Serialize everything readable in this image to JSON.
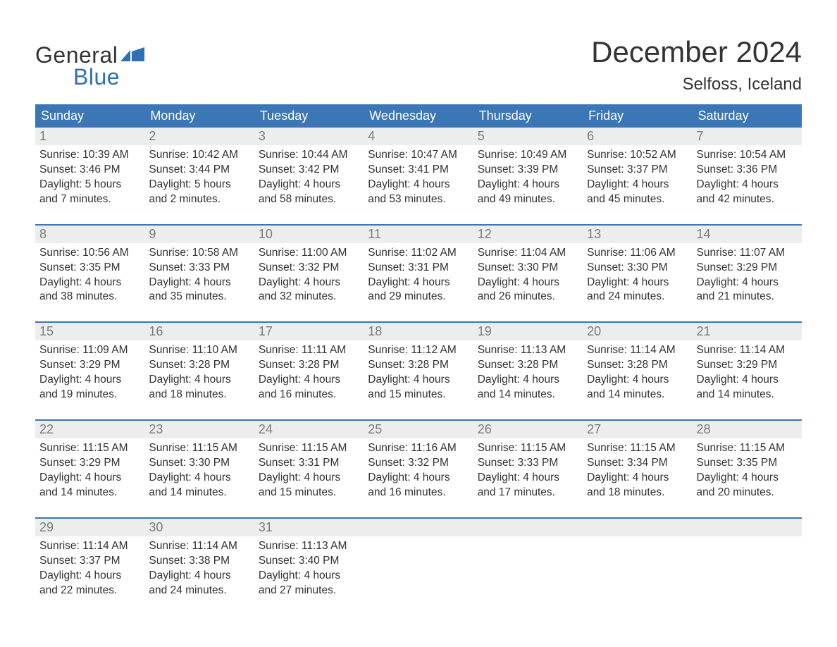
{
  "logo": {
    "text_top": "General",
    "text_bottom": "Blue",
    "flag_color": "#2f6fb3",
    "top_color": "#333333",
    "bottom_color": "#2f6fb3"
  },
  "title": "December 2024",
  "location": "Selfoss, Iceland",
  "colors": {
    "header_bg": "#3b76b6",
    "header_text": "#ffffff",
    "daynum_bg": "#eceeee",
    "daynum_text": "#7a7a7a",
    "body_text": "#333333",
    "week_divider": "#3b76b6",
    "page_bg": "#ffffff"
  },
  "fonts": {
    "title_size_pt": 32,
    "location_size_pt": 18,
    "weekday_size_pt": 14,
    "daynum_size_pt": 14,
    "body_size_pt": 12
  },
  "weekdays": [
    "Sunday",
    "Monday",
    "Tuesday",
    "Wednesday",
    "Thursday",
    "Friday",
    "Saturday"
  ],
  "weeks": [
    [
      {
        "n": "1",
        "sunrise": "Sunrise: 10:39 AM",
        "sunset": "Sunset: 3:46 PM",
        "d1": "Daylight: 5 hours",
        "d2": "and 7 minutes."
      },
      {
        "n": "2",
        "sunrise": "Sunrise: 10:42 AM",
        "sunset": "Sunset: 3:44 PM",
        "d1": "Daylight: 5 hours",
        "d2": "and 2 minutes."
      },
      {
        "n": "3",
        "sunrise": "Sunrise: 10:44 AM",
        "sunset": "Sunset: 3:42 PM",
        "d1": "Daylight: 4 hours",
        "d2": "and 58 minutes."
      },
      {
        "n": "4",
        "sunrise": "Sunrise: 10:47 AM",
        "sunset": "Sunset: 3:41 PM",
        "d1": "Daylight: 4 hours",
        "d2": "and 53 minutes."
      },
      {
        "n": "5",
        "sunrise": "Sunrise: 10:49 AM",
        "sunset": "Sunset: 3:39 PM",
        "d1": "Daylight: 4 hours",
        "d2": "and 49 minutes."
      },
      {
        "n": "6",
        "sunrise": "Sunrise: 10:52 AM",
        "sunset": "Sunset: 3:37 PM",
        "d1": "Daylight: 4 hours",
        "d2": "and 45 minutes."
      },
      {
        "n": "7",
        "sunrise": "Sunrise: 10:54 AM",
        "sunset": "Sunset: 3:36 PM",
        "d1": "Daylight: 4 hours",
        "d2": "and 42 minutes."
      }
    ],
    [
      {
        "n": "8",
        "sunrise": "Sunrise: 10:56 AM",
        "sunset": "Sunset: 3:35 PM",
        "d1": "Daylight: 4 hours",
        "d2": "and 38 minutes."
      },
      {
        "n": "9",
        "sunrise": "Sunrise: 10:58 AM",
        "sunset": "Sunset: 3:33 PM",
        "d1": "Daylight: 4 hours",
        "d2": "and 35 minutes."
      },
      {
        "n": "10",
        "sunrise": "Sunrise: 11:00 AM",
        "sunset": "Sunset: 3:32 PM",
        "d1": "Daylight: 4 hours",
        "d2": "and 32 minutes."
      },
      {
        "n": "11",
        "sunrise": "Sunrise: 11:02 AM",
        "sunset": "Sunset: 3:31 PM",
        "d1": "Daylight: 4 hours",
        "d2": "and 29 minutes."
      },
      {
        "n": "12",
        "sunrise": "Sunrise: 11:04 AM",
        "sunset": "Sunset: 3:30 PM",
        "d1": "Daylight: 4 hours",
        "d2": "and 26 minutes."
      },
      {
        "n": "13",
        "sunrise": "Sunrise: 11:06 AM",
        "sunset": "Sunset: 3:30 PM",
        "d1": "Daylight: 4 hours",
        "d2": "and 24 minutes."
      },
      {
        "n": "14",
        "sunrise": "Sunrise: 11:07 AM",
        "sunset": "Sunset: 3:29 PM",
        "d1": "Daylight: 4 hours",
        "d2": "and 21 minutes."
      }
    ],
    [
      {
        "n": "15",
        "sunrise": "Sunrise: 11:09 AM",
        "sunset": "Sunset: 3:29 PM",
        "d1": "Daylight: 4 hours",
        "d2": "and 19 minutes."
      },
      {
        "n": "16",
        "sunrise": "Sunrise: 11:10 AM",
        "sunset": "Sunset: 3:28 PM",
        "d1": "Daylight: 4 hours",
        "d2": "and 18 minutes."
      },
      {
        "n": "17",
        "sunrise": "Sunrise: 11:11 AM",
        "sunset": "Sunset: 3:28 PM",
        "d1": "Daylight: 4 hours",
        "d2": "and 16 minutes."
      },
      {
        "n": "18",
        "sunrise": "Sunrise: 11:12 AM",
        "sunset": "Sunset: 3:28 PM",
        "d1": "Daylight: 4 hours",
        "d2": "and 15 minutes."
      },
      {
        "n": "19",
        "sunrise": "Sunrise: 11:13 AM",
        "sunset": "Sunset: 3:28 PM",
        "d1": "Daylight: 4 hours",
        "d2": "and 14 minutes."
      },
      {
        "n": "20",
        "sunrise": "Sunrise: 11:14 AM",
        "sunset": "Sunset: 3:28 PM",
        "d1": "Daylight: 4 hours",
        "d2": "and 14 minutes."
      },
      {
        "n": "21",
        "sunrise": "Sunrise: 11:14 AM",
        "sunset": "Sunset: 3:29 PM",
        "d1": "Daylight: 4 hours",
        "d2": "and 14 minutes."
      }
    ],
    [
      {
        "n": "22",
        "sunrise": "Sunrise: 11:15 AM",
        "sunset": "Sunset: 3:29 PM",
        "d1": "Daylight: 4 hours",
        "d2": "and 14 minutes."
      },
      {
        "n": "23",
        "sunrise": "Sunrise: 11:15 AM",
        "sunset": "Sunset: 3:30 PM",
        "d1": "Daylight: 4 hours",
        "d2": "and 14 minutes."
      },
      {
        "n": "24",
        "sunrise": "Sunrise: 11:15 AM",
        "sunset": "Sunset: 3:31 PM",
        "d1": "Daylight: 4 hours",
        "d2": "and 15 minutes."
      },
      {
        "n": "25",
        "sunrise": "Sunrise: 11:16 AM",
        "sunset": "Sunset: 3:32 PM",
        "d1": "Daylight: 4 hours",
        "d2": "and 16 minutes."
      },
      {
        "n": "26",
        "sunrise": "Sunrise: 11:15 AM",
        "sunset": "Sunset: 3:33 PM",
        "d1": "Daylight: 4 hours",
        "d2": "and 17 minutes."
      },
      {
        "n": "27",
        "sunrise": "Sunrise: 11:15 AM",
        "sunset": "Sunset: 3:34 PM",
        "d1": "Daylight: 4 hours",
        "d2": "and 18 minutes."
      },
      {
        "n": "28",
        "sunrise": "Sunrise: 11:15 AM",
        "sunset": "Sunset: 3:35 PM",
        "d1": "Daylight: 4 hours",
        "d2": "and 20 minutes."
      }
    ],
    [
      {
        "n": "29",
        "sunrise": "Sunrise: 11:14 AM",
        "sunset": "Sunset: 3:37 PM",
        "d1": "Daylight: 4 hours",
        "d2": "and 22 minutes."
      },
      {
        "n": "30",
        "sunrise": "Sunrise: 11:14 AM",
        "sunset": "Sunset: 3:38 PM",
        "d1": "Daylight: 4 hours",
        "d2": "and 24 minutes."
      },
      {
        "n": "31",
        "sunrise": "Sunrise: 11:13 AM",
        "sunset": "Sunset: 3:40 PM",
        "d1": "Daylight: 4 hours",
        "d2": "and 27 minutes."
      },
      {
        "n": "",
        "sunrise": "",
        "sunset": "",
        "d1": "",
        "d2": ""
      },
      {
        "n": "",
        "sunrise": "",
        "sunset": "",
        "d1": "",
        "d2": ""
      },
      {
        "n": "",
        "sunrise": "",
        "sunset": "",
        "d1": "",
        "d2": ""
      },
      {
        "n": "",
        "sunrise": "",
        "sunset": "",
        "d1": "",
        "d2": ""
      }
    ]
  ]
}
